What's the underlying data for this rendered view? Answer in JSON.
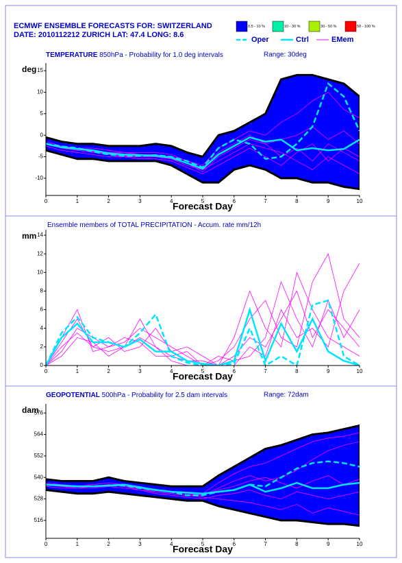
{
  "header": {
    "title": "ECMWF ENSEMBLE FORECASTS FOR:  SWITZERLAND",
    "subtitle": "DATE: 2010112212  ZURICH  LAT: 47.4  LONG: 8.6"
  },
  "legend": {
    "bands": [
      {
        "label": "0.5 - 10 %",
        "color": "#0000ff"
      },
      {
        "label": "10 - 30 %",
        "color": "#00f0a8"
      },
      {
        "label": "30 - 50 %",
        "color": "#a8f000"
      },
      {
        "label": "50 - 100 %",
        "color": "#ff0000"
      }
    ],
    "lines": [
      {
        "name": "Oper",
        "color": "#00e5ff",
        "dash": true
      },
      {
        "name": "Ctrl",
        "color": "#00e5ff",
        "dash": false
      },
      {
        "name": "EMem",
        "color": "#ff00ff",
        "dash": false
      }
    ]
  },
  "chart_data": [
    {
      "type": "line",
      "title_bold": "TEMPERATURE",
      "title": " 850hPa - Probability for 1.0 deg intervals",
      "range": "Range: 30deg",
      "y_label": "deg",
      "x_label": "Forecast Day",
      "xlim": [
        0,
        10
      ],
      "xticks": [
        0,
        1,
        2,
        3,
        4,
        5,
        6,
        7,
        8,
        9,
        10
      ],
      "ylim": [
        -14,
        15.5
      ],
      "yticks": [
        -10,
        -5,
        0,
        5,
        10,
        15
      ],
      "x": [
        0,
        0.5,
        1,
        1.5,
        2,
        2.5,
        3,
        3.5,
        4,
        4.5,
        5,
        5.5,
        6,
        6.5,
        7,
        7.5,
        8,
        8.5,
        9,
        9.5,
        10
      ],
      "envelope": {
        "upper": [
          -0.5,
          -1.5,
          -2,
          -2,
          -2.5,
          -2.5,
          -2.5,
          -2,
          -2.5,
          -4,
          -5,
          0,
          1,
          3,
          5,
          13,
          14,
          14,
          13,
          12,
          9
        ],
        "lower": [
          -3.5,
          -4.5,
          -5.5,
          -5.5,
          -6,
          -6,
          -6,
          -6,
          -7,
          -9,
          -11,
          -11,
          -8,
          -7,
          -8,
          -10,
          -10,
          -11,
          -11,
          -12,
          -12.5
        ]
      },
      "members": [
        [
          -2,
          -3,
          -3.5,
          -4,
          -4.5,
          -5,
          -5,
          -5,
          -5.5,
          -7,
          -8,
          -6,
          -4,
          -2,
          -3,
          -4,
          -6,
          -8,
          -5,
          -7,
          -9
        ],
        [
          -1.5,
          -2.5,
          -3,
          -3,
          -3.5,
          -4,
          -4,
          -4,
          -4.5,
          -6,
          -7,
          -3,
          -1,
          1,
          0,
          3,
          5,
          8,
          10,
          6,
          4
        ],
        [
          -2.5,
          -3.5,
          -4,
          -4.5,
          -5,
          -5,
          -5.5,
          -5.5,
          -6,
          -7.5,
          -9,
          -7,
          -5,
          -3,
          -5,
          -7,
          -4,
          -2,
          -6,
          -3,
          -5
        ],
        [
          -2,
          -2.5,
          -3,
          -3.5,
          -4,
          -4,
          -4.5,
          -4.5,
          -5,
          -6,
          -7.5,
          -4,
          -2,
          0,
          -2,
          -1,
          0,
          2,
          -1,
          1,
          -2
        ],
        [
          -2,
          -3,
          -3.2,
          -3.8,
          -4.5,
          -4.8,
          -5,
          -5,
          -5.5,
          -6.5,
          -8.5,
          -5,
          -3,
          -1,
          -2,
          -5,
          -3,
          -6,
          -2,
          -4,
          -6
        ]
      ],
      "ctrl": [
        -2,
        -2.8,
        -3.2,
        -3.5,
        -4.2,
        -4.5,
        -4.6,
        -4.8,
        -5.2,
        -6.5,
        -7.8,
        -4.5,
        -2.5,
        -0.5,
        -1.5,
        -1,
        -3.5,
        -3,
        -3.5,
        -3.2,
        -1
      ],
      "oper": [
        -2,
        -2.6,
        -3,
        -3.8,
        -4.5,
        -4.8,
        -4.8,
        -4.6,
        -5,
        -6,
        -7.5,
        -3,
        -1,
        -2,
        -5.5,
        -5,
        -2,
        2,
        12,
        9,
        1
      ]
    },
    {
      "type": "line",
      "title": "Ensemble members of TOTAL PRECIPITATION - Accum. rate mm/12h",
      "y_label": "mm",
      "x_label": "Forecast Day",
      "xlim": [
        0,
        10
      ],
      "xticks": [
        0,
        1,
        2,
        3,
        4,
        5,
        6,
        7,
        8,
        9,
        10
      ],
      "ylim": [
        0,
        14
      ],
      "yticks": [
        0,
        2,
        4,
        6,
        8,
        10,
        12,
        14
      ],
      "x": [
        0,
        0.5,
        1,
        1.5,
        2,
        2.5,
        3,
        3.5,
        4,
        4.5,
        5,
        5.5,
        6,
        6.5,
        7,
        7.5,
        8,
        8.5,
        9,
        9.5,
        10
      ],
      "members": [
        [
          0,
          2,
          3.5,
          2,
          1.5,
          2,
          3,
          2,
          1,
          0.5,
          0.5,
          0,
          1,
          3,
          2,
          5,
          8,
          3,
          6,
          4,
          2
        ],
        [
          0,
          1.5,
          4,
          3,
          2,
          2.5,
          4,
          3,
          2,
          1,
          0,
          0.5,
          2,
          5,
          7,
          3,
          2,
          9,
          12,
          5,
          3
        ],
        [
          0,
          2.5,
          5,
          2,
          3,
          1.5,
          2,
          4,
          1.5,
          2,
          1,
          0,
          0,
          2,
          1,
          6,
          3,
          4,
          2,
          8,
          11
        ],
        [
          0,
          1,
          3,
          2.5,
          1,
          2,
          5,
          2,
          0.5,
          0,
          0,
          0,
          3,
          8,
          4,
          2,
          10,
          6,
          3,
          2,
          1
        ],
        [
          0,
          3,
          6,
          1.5,
          2,
          3,
          2.5,
          1,
          1,
          1.5,
          0,
          1,
          0.5,
          1,
          3,
          9,
          5,
          2,
          7,
          3,
          6
        ]
      ],
      "ctrl": [
        0,
        3,
        4.5,
        2.5,
        2.5,
        2,
        2.8,
        1.5,
        1.5,
        0.5,
        0.2,
        0,
        0.5,
        6,
        0.5,
        4.5,
        1.5,
        5,
        1.5,
        0.5,
        0
      ],
      "oper": [
        0,
        3.5,
        5.2,
        3,
        2.5,
        2,
        3.5,
        5.5,
        1,
        0.3,
        0,
        0,
        0.2,
        4,
        0,
        1,
        0,
        6.5,
        7,
        1,
        0
      ]
    },
    {
      "type": "line",
      "title_bold": "GEOPOTENTIAL",
      "title": " 500hPa - Probability for 2.5 dam intervals",
      "range": "Range: 72dam",
      "y_label": "dam",
      "x_label": "Forecast Day",
      "xlim": [
        0,
        10
      ],
      "xticks": [
        0,
        1,
        2,
        3,
        4,
        5,
        6,
        7,
        8,
        9,
        10
      ],
      "ylim": [
        506,
        578
      ],
      "yticks": [
        516,
        528,
        540,
        552,
        564,
        576
      ],
      "x": [
        0,
        0.5,
        1,
        1.5,
        2,
        2.5,
        3,
        3.5,
        4,
        4.5,
        5,
        5.5,
        6,
        6.5,
        7,
        7.5,
        8,
        8.5,
        9,
        9.5,
        10
      ],
      "envelope": {
        "upper": [
          539,
          538,
          538,
          538,
          540,
          538,
          537,
          536,
          535,
          535,
          535,
          541,
          546,
          551,
          556,
          558,
          561,
          564,
          565,
          567,
          569
        ],
        "lower": [
          533,
          532,
          531,
          531,
          532,
          531,
          530,
          529,
          528,
          527,
          527,
          524,
          522,
          520,
          518,
          516,
          516,
          515,
          514,
          514,
          513
        ]
      },
      "members": [
        [
          536,
          535,
          534,
          535,
          536,
          535,
          534,
          532,
          531,
          530,
          530,
          534,
          538,
          541,
          538,
          540,
          544,
          550,
          555,
          558,
          560
        ],
        [
          535,
          534,
          534,
          534,
          535,
          534,
          533,
          531,
          530,
          529,
          528,
          530,
          531,
          533,
          530,
          528,
          532,
          530,
          528,
          530,
          532
        ],
        [
          537,
          536,
          535,
          536,
          537,
          536,
          535,
          533,
          532,
          531,
          531,
          537,
          542,
          546,
          548,
          552,
          556,
          560,
          562,
          563,
          565
        ],
        [
          536,
          535,
          535,
          535,
          536,
          535,
          533,
          532,
          531,
          530,
          529,
          528,
          527,
          526,
          524,
          522,
          525,
          520,
          523,
          521,
          519
        ],
        [
          536,
          536,
          535,
          535,
          536,
          535,
          534,
          533,
          532,
          531,
          530,
          533,
          535,
          538,
          540,
          537,
          534,
          538,
          541,
          536,
          539
        ]
      ],
      "ctrl": [
        536,
        535.5,
        535,
        535,
        535.5,
        536,
        534.5,
        533,
        532,
        531.5,
        531,
        532,
        533,
        536,
        532,
        534,
        537,
        534,
        534,
        536,
        537
      ],
      "oper": [
        536,
        535.5,
        535,
        535,
        535.5,
        535.5,
        534,
        533,
        532,
        530,
        530,
        532,
        533,
        536,
        535,
        540,
        545,
        548,
        549,
        548,
        546
      ]
    }
  ]
}
